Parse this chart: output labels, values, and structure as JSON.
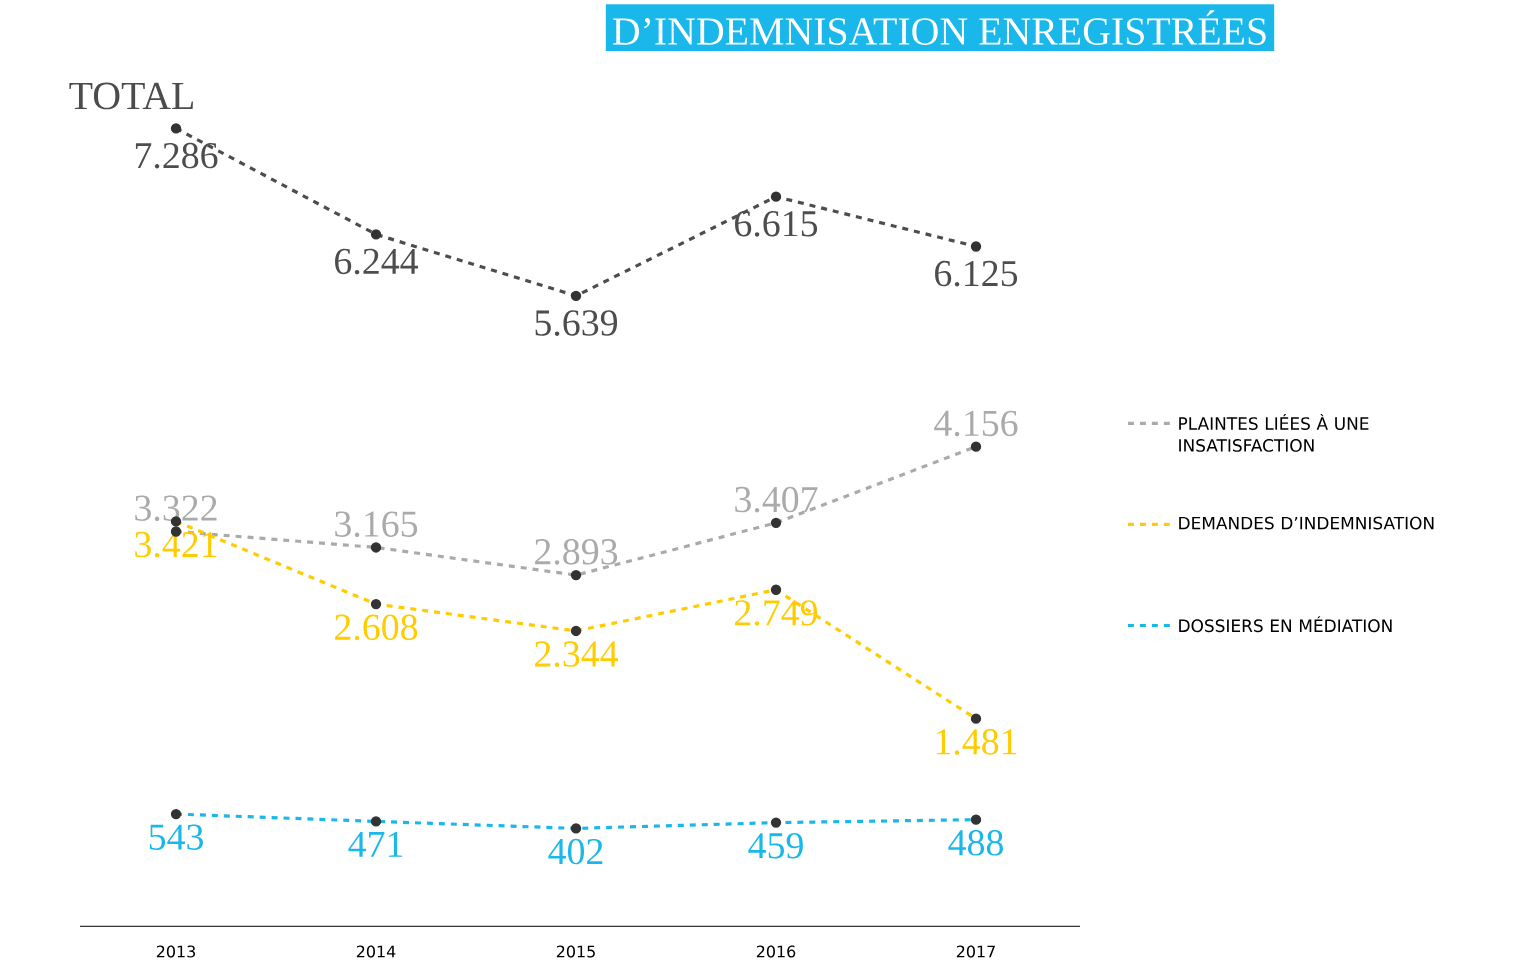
{
  "chart_data": {
    "type": "line",
    "title": "D’INDEMNISATION ENREGISTRÉES",
    "categories": [
      "2013",
      "2014",
      "2015",
      "2016",
      "2017"
    ],
    "series": [
      {
        "name": "TOTAL",
        "color": "#4d4d4d",
        "values": [
          7286,
          6244,
          5639,
          6615,
          6125
        ],
        "value_labels": [
          "7.286",
          "6.244",
          "5.639",
          "6.615",
          "6.125"
        ]
      },
      {
        "name": "PLAINTES LIÉES À UNE INSATISFACTION",
        "color": "#aaaaaa",
        "values": [
          3322,
          3165,
          2893,
          3407,
          4156
        ],
        "value_labels": [
          "3.322",
          "3.165",
          "2.893",
          "3.407",
          "4.156"
        ]
      },
      {
        "name": "DEMANDES D’INDEMNISATION",
        "color": "#ffcc00",
        "values": [
          3421,
          2608,
          2344,
          2749,
          1481
        ],
        "value_labels": [
          "3.421",
          "2.608",
          "2.344",
          "2.749",
          "1.481"
        ]
      },
      {
        "name": "DOSSIERS EN MÉDIATION",
        "color": "#1ab7ea",
        "values": [
          543,
          471,
          402,
          459,
          488
        ],
        "value_labels": [
          "543",
          "471",
          "402",
          "459",
          "488"
        ]
      }
    ],
    "legend": "right",
    "tick_labels": "x",
    "marker": "circle",
    "line_style": "dashed"
  }
}
